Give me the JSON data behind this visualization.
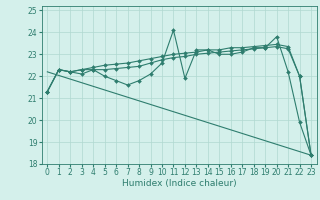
{
  "xlabel": "Humidex (Indice chaleur)",
  "x_values": [
    0,
    1,
    2,
    3,
    4,
    5,
    6,
    7,
    8,
    9,
    10,
    11,
    12,
    13,
    14,
    15,
    16,
    17,
    18,
    19,
    20,
    21,
    22,
    23
  ],
  "line1": [
    21.3,
    22.3,
    22.2,
    22.1,
    22.3,
    22.0,
    21.8,
    21.6,
    21.8,
    22.1,
    22.6,
    24.1,
    21.9,
    23.2,
    23.2,
    23.0,
    23.0,
    23.1,
    23.3,
    23.3,
    23.8,
    22.2,
    19.9,
    18.4
  ],
  "line2": [
    21.3,
    22.3,
    22.2,
    22.3,
    22.4,
    22.5,
    22.55,
    22.6,
    22.7,
    22.8,
    22.9,
    23.0,
    23.05,
    23.1,
    23.2,
    23.2,
    23.3,
    23.3,
    23.35,
    23.4,
    23.45,
    23.35,
    22.0,
    18.4
  ],
  "line3": [
    21.3,
    22.3,
    22.2,
    22.3,
    22.3,
    22.3,
    22.35,
    22.4,
    22.45,
    22.6,
    22.75,
    22.85,
    22.9,
    23.0,
    23.05,
    23.1,
    23.15,
    23.2,
    23.25,
    23.3,
    23.35,
    23.25,
    22.0,
    18.4
  ],
  "xlim": [
    -0.5,
    23.5
  ],
  "ylim": [
    18,
    25.2
  ],
  "yticks": [
    18,
    19,
    20,
    21,
    22,
    23,
    24,
    25
  ],
  "xticks": [
    0,
    1,
    2,
    3,
    4,
    5,
    6,
    7,
    8,
    9,
    10,
    11,
    12,
    13,
    14,
    15,
    16,
    17,
    18,
    19,
    20,
    21,
    22,
    23
  ],
  "line_color": "#2e7d6e",
  "bg_color": "#d4f0eb",
  "grid_color": "#b0d8d0",
  "marker": "D",
  "markersize": 2.0,
  "linewidth": 0.8,
  "tick_fontsize": 5.5,
  "label_fontsize": 6.5
}
